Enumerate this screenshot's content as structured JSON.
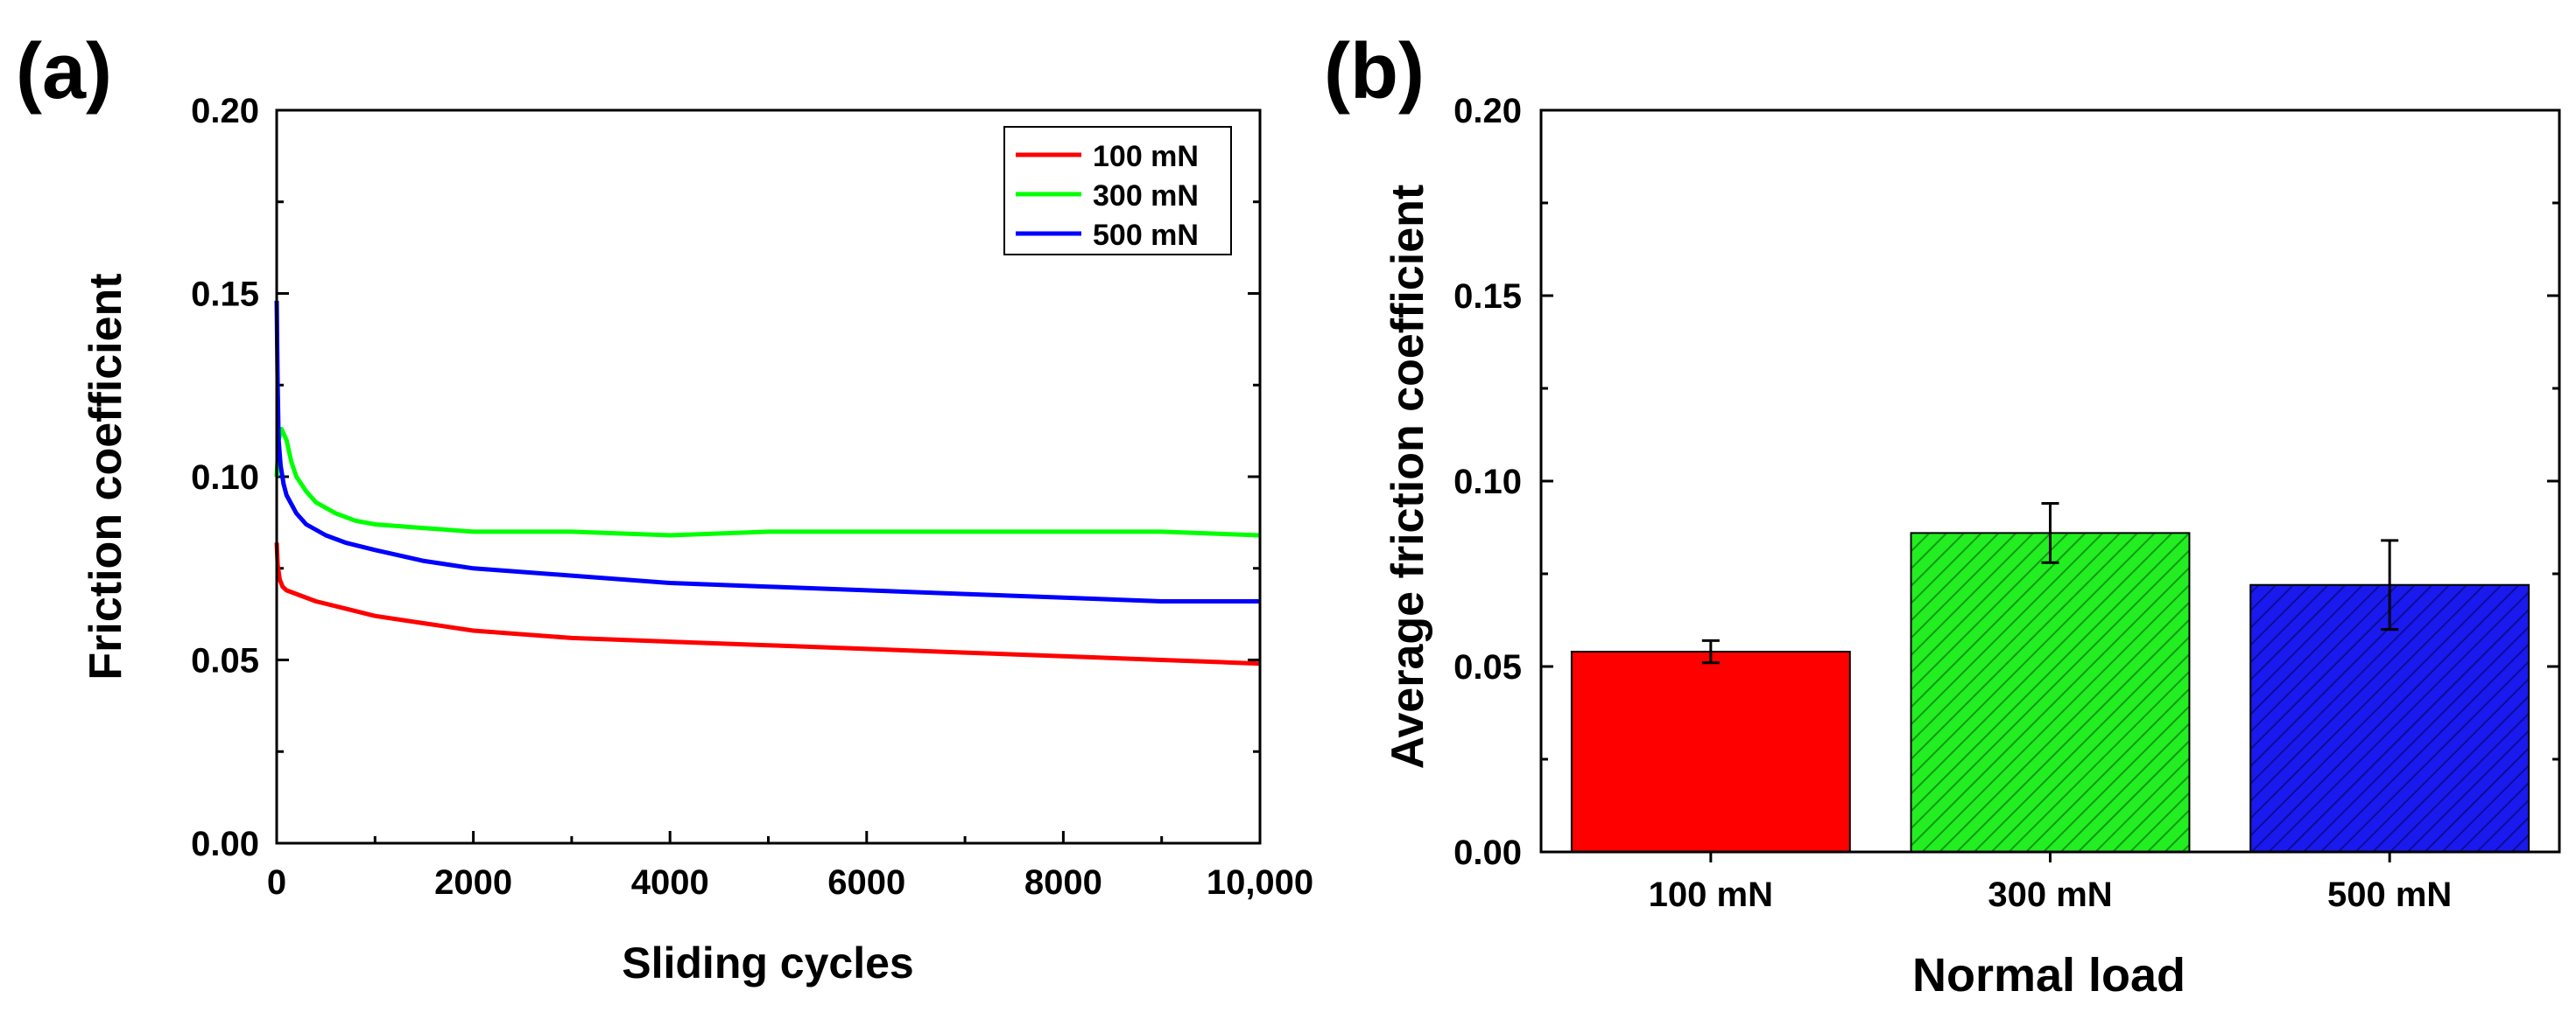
{
  "chart_data": [
    {
      "panel_label": "(a)",
      "type": "line",
      "xlabel": "Sliding cycles",
      "ylabel": "Friction coefficient",
      "xlim": [
        0,
        10000
      ],
      "ylim": [
        0,
        0.2
      ],
      "xticks": [
        0,
        2000,
        4000,
        6000,
        8000,
        10000
      ],
      "xtick_labels": [
        "0",
        "2000",
        "4000",
        "6000",
        "8000",
        "10,000"
      ],
      "yticks": [
        0.0,
        0.05,
        0.1,
        0.15,
        0.2
      ],
      "ytick_labels": [
        "0.00",
        "0.05",
        "0.10",
        "0.15",
        "0.20"
      ],
      "grid": false,
      "legend_position": "top-right",
      "series": [
        {
          "name": "100 mN",
          "color": "#ff0000",
          "x": [
            0,
            10,
            30,
            60,
            100,
            200,
            400,
            700,
            1000,
            1500,
            2000,
            3000,
            4000,
            5000,
            6000,
            7000,
            8000,
            9000,
            10000
          ],
          "y": [
            0.082,
            0.076,
            0.072,
            0.07,
            0.069,
            0.068,
            0.066,
            0.064,
            0.062,
            0.06,
            0.058,
            0.056,
            0.055,
            0.054,
            0.053,
            0.052,
            0.051,
            0.05,
            0.049
          ]
        },
        {
          "name": "300 mN",
          "color": "#00ff00",
          "x": [
            0,
            20,
            50,
            100,
            150,
            200,
            300,
            400,
            600,
            800,
            1000,
            1500,
            2000,
            3000,
            4000,
            5000,
            6000,
            7000,
            8000,
            9000,
            10000
          ],
          "y": [
            0.1,
            0.11,
            0.113,
            0.11,
            0.104,
            0.1,
            0.096,
            0.093,
            0.09,
            0.088,
            0.087,
            0.086,
            0.085,
            0.085,
            0.084,
            0.085,
            0.085,
            0.085,
            0.085,
            0.085,
            0.084
          ]
        },
        {
          "name": "500 mN",
          "color": "#0000ff",
          "x": [
            0,
            10,
            20,
            40,
            70,
            100,
            200,
            300,
            500,
            700,
            1000,
            1500,
            2000,
            3000,
            4000,
            5000,
            6000,
            7000,
            8000,
            9000,
            10000
          ],
          "y": [
            0.148,
            0.125,
            0.11,
            0.103,
            0.098,
            0.095,
            0.09,
            0.087,
            0.084,
            0.082,
            0.08,
            0.077,
            0.075,
            0.073,
            0.071,
            0.07,
            0.069,
            0.068,
            0.067,
            0.066,
            0.066
          ]
        }
      ]
    },
    {
      "panel_label": "(b)",
      "type": "bar",
      "xlabel": "Normal load",
      "ylabel": "Average friction coefficient",
      "ylim": [
        0,
        0.2
      ],
      "yticks": [
        0.0,
        0.05,
        0.1,
        0.15,
        0.2
      ],
      "ytick_labels": [
        "0.00",
        "0.05",
        "0.10",
        "0.15",
        "0.20"
      ],
      "grid": false,
      "categories": [
        "100 mN",
        "300 mN",
        "500 mN"
      ],
      "values": [
        0.054,
        0.086,
        0.072
      ],
      "errors": [
        0.003,
        0.008,
        0.012
      ],
      "colors": [
        "#ff0000",
        "#22ee22",
        "#1a1aee"
      ],
      "hatched": [
        false,
        true,
        true
      ]
    }
  ]
}
